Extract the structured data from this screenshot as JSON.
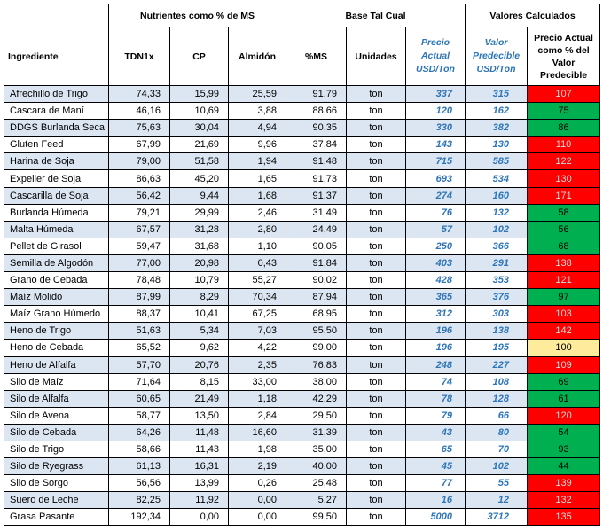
{
  "headers": {
    "group_nutrientes": "Nutrientes como % de MS",
    "group_base": "Base Tal Cual",
    "group_valores": "Valores Calculados",
    "ingrediente": "Ingrediente",
    "tdn": "TDN1x",
    "cp": "CP",
    "almidon": "Almidón",
    "ms": "%MS",
    "unidades": "Unidades",
    "precio_actual": "Precio Actual USD/Ton",
    "valor_predecible": "Valor Predecible USD/Ton",
    "precio_pct": "Precio Actual como % del Valor Predecible"
  },
  "colors": {
    "red": "#ff0000",
    "green": "#00b050",
    "yellow": "#ffeb9c",
    "stripe": "#dce6f2",
    "blue_text": "#2e75b6"
  },
  "rows": [
    {
      "ingrediente": "Afrechillo de Trigo",
      "tdn": "74,33",
      "cp": "15,99",
      "almidon": "25,59",
      "ms": "91,79",
      "unidades": "ton",
      "precio": "337",
      "valor": "315",
      "pct": "107",
      "status": "red"
    },
    {
      "ingrediente": "Cascara de Maní",
      "tdn": "46,16",
      "cp": "10,69",
      "almidon": "3,88",
      "ms": "88,66",
      "unidades": "ton",
      "precio": "120",
      "valor": "162",
      "pct": "75",
      "status": "green"
    },
    {
      "ingrediente": "DDGS Burlanda Seca",
      "tdn": "75,63",
      "cp": "30,04",
      "almidon": "4,94",
      "ms": "90,35",
      "unidades": "ton",
      "precio": "330",
      "valor": "382",
      "pct": "86",
      "status": "green"
    },
    {
      "ingrediente": "Gluten Feed",
      "tdn": "67,99",
      "cp": "21,69",
      "almidon": "9,96",
      "ms": "37,84",
      "unidades": "ton",
      "precio": "143",
      "valor": "130",
      "pct": "110",
      "status": "red"
    },
    {
      "ingrediente": "Harina de Soja",
      "tdn": "79,00",
      "cp": "51,58",
      "almidon": "1,94",
      "ms": "91,48",
      "unidades": "ton",
      "precio": "715",
      "valor": "585",
      "pct": "122",
      "status": "red"
    },
    {
      "ingrediente": "Expeller de Soja",
      "tdn": "86,63",
      "cp": "45,20",
      "almidon": "1,65",
      "ms": "91,73",
      "unidades": "ton",
      "precio": "693",
      "valor": "534",
      "pct": "130",
      "status": "red"
    },
    {
      "ingrediente": "Cascarilla de Soja",
      "tdn": "56,42",
      "cp": "9,44",
      "almidon": "1,68",
      "ms": "91,37",
      "unidades": "ton",
      "precio": "274",
      "valor": "160",
      "pct": "171",
      "status": "red"
    },
    {
      "ingrediente": "Burlanda Húmeda",
      "tdn": "79,21",
      "cp": "29,99",
      "almidon": "2,46",
      "ms": "31,49",
      "unidades": "ton",
      "precio": "76",
      "valor": "132",
      "pct": "58",
      "status": "green"
    },
    {
      "ingrediente": "Malta Húmeda",
      "tdn": "67,57",
      "cp": "31,28",
      "almidon": "2,80",
      "ms": "24,49",
      "unidades": "ton",
      "precio": "57",
      "valor": "102",
      "pct": "56",
      "status": "green"
    },
    {
      "ingrediente": "Pellet de Girasol",
      "tdn": "59,47",
      "cp": "31,68",
      "almidon": "1,10",
      "ms": "90,05",
      "unidades": "ton",
      "precio": "250",
      "valor": "366",
      "pct": "68",
      "status": "green"
    },
    {
      "ingrediente": "Semilla de Algodón",
      "tdn": "77,00",
      "cp": "20,98",
      "almidon": "0,43",
      "ms": "91,84",
      "unidades": "ton",
      "precio": "403",
      "valor": "291",
      "pct": "138",
      "status": "red"
    },
    {
      "ingrediente": "Grano de Cebada",
      "tdn": "78,48",
      "cp": "10,79",
      "almidon": "55,27",
      "ms": "90,02",
      "unidades": "ton",
      "precio": "428",
      "valor": "353",
      "pct": "121",
      "status": "red"
    },
    {
      "ingrediente": "Maíz Molido",
      "tdn": "87,99",
      "cp": "8,29",
      "almidon": "70,34",
      "ms": "87,94",
      "unidades": "ton",
      "precio": "365",
      "valor": "376",
      "pct": "97",
      "status": "green"
    },
    {
      "ingrediente": "Maíz Grano Húmedo",
      "tdn": "88,37",
      "cp": "10,41",
      "almidon": "67,25",
      "ms": "68,95",
      "unidades": "ton",
      "precio": "312",
      "valor": "303",
      "pct": "103",
      "status": "red"
    },
    {
      "ingrediente": "Heno de Trigo",
      "tdn": "51,63",
      "cp": "5,34",
      "almidon": "7,03",
      "ms": "95,50",
      "unidades": "ton",
      "precio": "196",
      "valor": "138",
      "pct": "142",
      "status": "red"
    },
    {
      "ingrediente": "Heno de Cebada",
      "tdn": "65,52",
      "cp": "9,62",
      "almidon": "4,22",
      "ms": "99,00",
      "unidades": "ton",
      "precio": "196",
      "valor": "195",
      "pct": "100",
      "status": "yellow"
    },
    {
      "ingrediente": "Heno de Alfalfa",
      "tdn": "57,70",
      "cp": "20,76",
      "almidon": "2,35",
      "ms": "76,83",
      "unidades": "ton",
      "precio": "248",
      "valor": "227",
      "pct": "109",
      "status": "red"
    },
    {
      "ingrediente": "Silo de Maíz",
      "tdn": "71,64",
      "cp": "8,15",
      "almidon": "33,00",
      "ms": "38,00",
      "unidades": "ton",
      "precio": "74",
      "valor": "108",
      "pct": "69",
      "status": "green"
    },
    {
      "ingrediente": "Silo de Alfalfa",
      "tdn": "60,65",
      "cp": "21,49",
      "almidon": "1,18",
      "ms": "42,29",
      "unidades": "ton",
      "precio": "78",
      "valor": "128",
      "pct": "61",
      "status": "green"
    },
    {
      "ingrediente": "Silo de Avena",
      "tdn": "58,77",
      "cp": "13,50",
      "almidon": "2,84",
      "ms": "29,50",
      "unidades": "ton",
      "precio": "79",
      "valor": "66",
      "pct": "120",
      "status": "red"
    },
    {
      "ingrediente": "Silo de Cebada",
      "tdn": "64,26",
      "cp": "11,48",
      "almidon": "16,60",
      "ms": "31,39",
      "unidades": "ton",
      "precio": "43",
      "valor": "80",
      "pct": "54",
      "status": "green"
    },
    {
      "ingrediente": "Silo de Trigo",
      "tdn": "58,66",
      "cp": "11,43",
      "almidon": "1,98",
      "ms": "35,00",
      "unidades": "ton",
      "precio": "65",
      "valor": "70",
      "pct": "93",
      "status": "green"
    },
    {
      "ingrediente": "Silo de Ryegrass",
      "tdn": "61,13",
      "cp": "16,31",
      "almidon": "2,19",
      "ms": "40,00",
      "unidades": "ton",
      "precio": "45",
      "valor": "102",
      "pct": "44",
      "status": "green"
    },
    {
      "ingrediente": "Silo de Sorgo",
      "tdn": "56,56",
      "cp": "13,99",
      "almidon": "0,26",
      "ms": "25,48",
      "unidades": "ton",
      "precio": "77",
      "valor": "55",
      "pct": "139",
      "status": "red"
    },
    {
      "ingrediente": "Suero de Leche",
      "tdn": "82,25",
      "cp": "11,92",
      "almidon": "0,00",
      "ms": "5,27",
      "unidades": "ton",
      "precio": "16",
      "valor": "12",
      "pct": "132",
      "status": "red"
    },
    {
      "ingrediente": "Grasa Pasante",
      "tdn": "192,34",
      "cp": "0,00",
      "almidon": "0,00",
      "ms": "99,50",
      "unidades": "ton",
      "precio": "5000",
      "valor": "3712",
      "pct": "135",
      "status": "red"
    }
  ]
}
